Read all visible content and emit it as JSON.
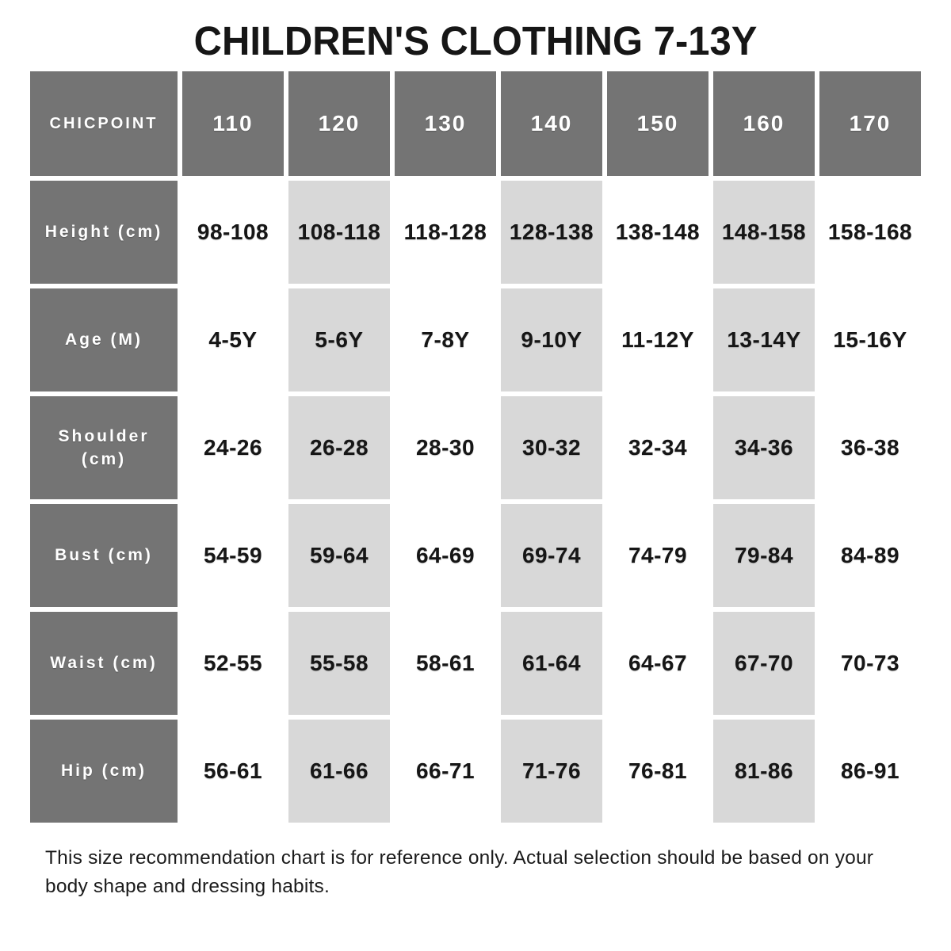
{
  "title": "CHILDREN'S CLOTHING 7-13Y",
  "table": {
    "brand": "CHICPOINT",
    "sizes": [
      "110",
      "120",
      "130",
      "140",
      "150",
      "160",
      "170"
    ],
    "rows": [
      {
        "label": "Height (cm)",
        "values": [
          "98-108",
          "108-118",
          "118-128",
          "128-138",
          "138-148",
          "148-158",
          "158-168"
        ]
      },
      {
        "label": "Age (M)",
        "values": [
          "4-5Y",
          "5-6Y",
          "7-8Y",
          "9-10Y",
          "11-12Y",
          "13-14Y",
          "15-16Y"
        ]
      },
      {
        "label": "Shoulder (cm)",
        "values": [
          "24-26",
          "26-28",
          "28-30",
          "30-32",
          "32-34",
          "34-36",
          "36-38"
        ]
      },
      {
        "label": "Bust (cm)",
        "values": [
          "54-59",
          "59-64",
          "64-69",
          "69-74",
          "74-79",
          "79-84",
          "84-89"
        ]
      },
      {
        "label": "Waist (cm)",
        "values": [
          "52-55",
          "55-58",
          "58-61",
          "61-64",
          "64-67",
          "67-70",
          "70-73"
        ]
      },
      {
        "label": "Hip (cm)",
        "values": [
          "56-61",
          "61-66",
          "66-71",
          "71-76",
          "76-81",
          "81-86",
          "86-91"
        ]
      }
    ]
  },
  "footer_note": "This size recommendation chart is for reference only. Actual selection should be based on your body shape and dressing habits.",
  "colors": {
    "header_bg": "#747474",
    "header_text": "#ffffff",
    "alt_cell_bg": "#d8d8d8",
    "cell_bg": "#ffffff",
    "cell_text": "#161616"
  }
}
